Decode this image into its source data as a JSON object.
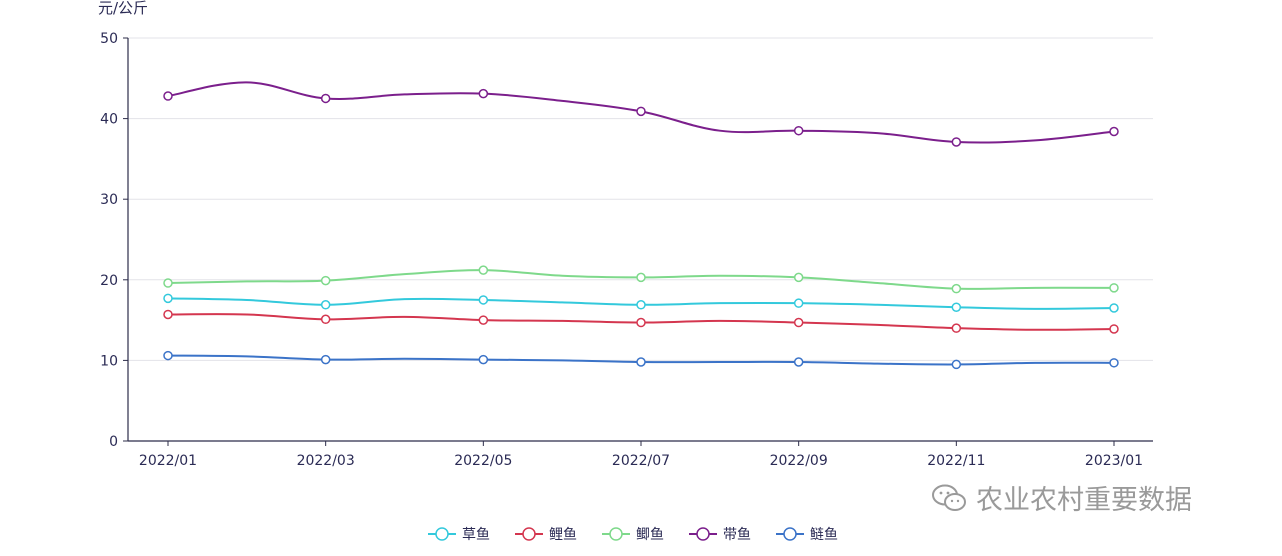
{
  "chart_data": {
    "type": "line",
    "title": "",
    "ylabel": "元/公斤",
    "xlabel": "",
    "ylim": [
      0,
      50
    ],
    "yticks": [
      0,
      10,
      20,
      30,
      40,
      50
    ],
    "categories": [
      "2022/01",
      "2022/02",
      "2022/03",
      "2022/04",
      "2022/05",
      "2022/06",
      "2022/07",
      "2022/08",
      "2022/09",
      "2022/10",
      "2022/11",
      "2022/12",
      "2023/01"
    ],
    "xtick_labels": [
      "2022/01",
      "2022/03",
      "2022/05",
      "2022/07",
      "2022/09",
      "2022/11",
      "2023/01"
    ],
    "marker_indices": [
      0,
      2,
      4,
      6,
      8,
      10,
      12
    ],
    "grid": true,
    "legend_position": "bottom-center",
    "series": [
      {
        "name": "草鱼",
        "color": "#33c9dc",
        "values": [
          17.7,
          17.5,
          16.9,
          17.6,
          17.5,
          17.2,
          16.9,
          17.1,
          17.1,
          16.9,
          16.6,
          16.4,
          16.5
        ]
      },
      {
        "name": "鲤鱼",
        "color": "#d4364f",
        "values": [
          15.7,
          15.7,
          15.1,
          15.4,
          15.0,
          14.9,
          14.7,
          14.9,
          14.7,
          14.4,
          14.0,
          13.8,
          13.9
        ]
      },
      {
        "name": "鲫鱼",
        "color": "#7ed98b",
        "values": [
          19.6,
          19.8,
          19.9,
          20.7,
          21.2,
          20.5,
          20.3,
          20.5,
          20.3,
          19.6,
          18.9,
          19.0,
          19.0
        ]
      },
      {
        "name": "带鱼",
        "color": "#7b1f8c",
        "values": [
          42.8,
          44.5,
          42.5,
          43.0,
          43.1,
          42.2,
          40.9,
          38.5,
          38.5,
          38.2,
          37.1,
          37.3,
          38.4
        ]
      },
      {
        "name": "鲢鱼",
        "color": "#3b73c8",
        "values": [
          10.6,
          10.5,
          10.1,
          10.2,
          10.1,
          10.0,
          9.8,
          9.8,
          9.8,
          9.6,
          9.5,
          9.7,
          9.7
        ]
      }
    ]
  },
  "watermark": {
    "text": "农业农村重要数据",
    "icon": "wechat-icon"
  }
}
